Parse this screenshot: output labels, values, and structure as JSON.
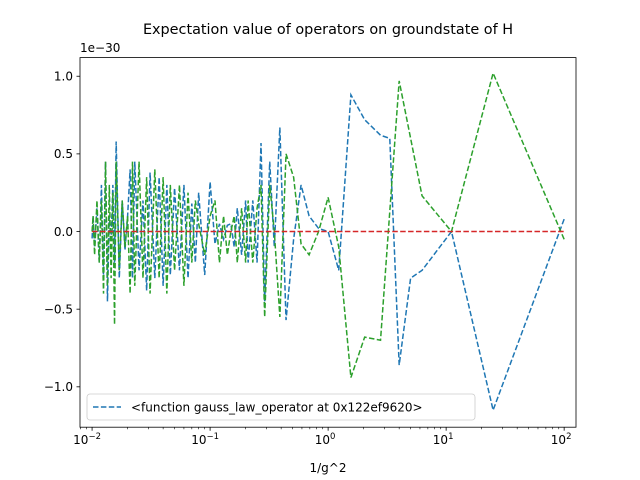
{
  "chart_data": {
    "type": "line",
    "title": "Expectation value of operators on groundstate of H",
    "xlabel": "1/g^2",
    "ylabel": "",
    "xscale": "log",
    "xlim": [
      0.0079,
      126
    ],
    "ylim": [
      -1.26,
      1.12
    ],
    "y_offset_label": "1e−30",
    "xticks": [
      {
        "value": 0.01,
        "base": "10",
        "exp": "−2"
      },
      {
        "value": 0.1,
        "base": "10",
        "exp": "−1"
      },
      {
        "value": 1,
        "base": "10",
        "exp": "0"
      },
      {
        "value": 10,
        "base": "10",
        "exp": "1"
      },
      {
        "value": 100,
        "base": "10",
        "exp": "2"
      }
    ],
    "yticks": [
      {
        "value": 1.0,
        "label": "1.0"
      },
      {
        "value": 0.5,
        "label": "0.5"
      },
      {
        "value": 0.0,
        "label": "0.0"
      },
      {
        "value": -0.5,
        "label": "−0.5"
      },
      {
        "value": -1.0,
        "label": "−1.0"
      }
    ],
    "grid": false,
    "legend_position": "lower-left",
    "series": [
      {
        "name": "<function gauss_law_operator at 0x122ef9620>",
        "color": "#1f77b4",
        "style": "dashed",
        "x": [
          100,
          25.0,
          11.1,
          6.25,
          5.0,
          4.0,
          3.33,
          2.78,
          2.04,
          1.56,
          1.23,
          1.0,
          0.83,
          0.69,
          0.59,
          0.51,
          0.44,
          0.39,
          0.35,
          0.32,
          0.29,
          0.27,
          0.25,
          0.23,
          0.21,
          0.2,
          0.185,
          0.17,
          0.16,
          0.15,
          0.14,
          0.13,
          0.12,
          0.11,
          0.1,
          0.09,
          0.08,
          0.075,
          0.07,
          0.065,
          0.06,
          0.055,
          0.05,
          0.046,
          0.043,
          0.04,
          0.037,
          0.034,
          0.031,
          0.029,
          0.027,
          0.025,
          0.023,
          0.022,
          0.021,
          0.02,
          0.019,
          0.018,
          0.017,
          0.016,
          0.0155,
          0.015,
          0.0145,
          0.014,
          0.0135,
          0.013,
          0.0125,
          0.012,
          0.0115,
          0.011,
          0.0105,
          0.0102,
          0.01
        ],
        "y": [
          0.08,
          -1.15,
          0.0,
          -0.25,
          -0.3,
          -0.86,
          0.6,
          0.62,
          0.72,
          0.88,
          -0.25,
          0.0,
          0.02,
          0.1,
          0.3,
          -0.05,
          -0.57,
          0.67,
          -0.1,
          0.45,
          -0.45,
          0.57,
          -0.2,
          0.2,
          -0.2,
          0.2,
          -0.15,
          0.15,
          -0.1,
          0.05,
          0.04,
          -0.05,
          0.05,
          -0.08,
          0.32,
          -0.28,
          0.25,
          -0.2,
          0.18,
          -0.3,
          0.3,
          -0.25,
          0.28,
          -0.28,
          0.3,
          -0.35,
          0.35,
          -0.3,
          0.38,
          -0.38,
          0.2,
          -0.25,
          0.45,
          -0.3,
          0.4,
          0.1,
          -0.12,
          0.2,
          -0.3,
          0.58,
          -0.2,
          0.3,
          -0.05,
          0.1,
          -0.45,
          0.45,
          -0.3,
          0.3,
          -0.2,
          0.15,
          -0.1,
          0.1,
          -0.05
        ]
      },
      {
        "name": "",
        "color": "#2ca02c",
        "style": "dashed",
        "x": [
          100,
          25.0,
          11.1,
          6.25,
          4.0,
          2.78,
          2.04,
          1.56,
          1.23,
          1.0,
          0.83,
          0.69,
          0.59,
          0.51,
          0.44,
          0.39,
          0.35,
          0.32,
          0.29,
          0.27,
          0.25,
          0.23,
          0.21,
          0.2,
          0.185,
          0.17,
          0.16,
          0.15,
          0.14,
          0.13,
          0.12,
          0.11,
          0.1,
          0.09,
          0.08,
          0.075,
          0.07,
          0.065,
          0.06,
          0.055,
          0.05,
          0.046,
          0.043,
          0.04,
          0.037,
          0.034,
          0.031,
          0.029,
          0.027,
          0.025,
          0.023,
          0.022,
          0.021,
          0.02,
          0.019,
          0.018,
          0.017,
          0.016,
          0.0155,
          0.015,
          0.0145,
          0.014,
          0.0135,
          0.013,
          0.0125,
          0.012,
          0.0115,
          0.011,
          0.0105,
          0.0102,
          0.01
        ],
        "y": [
          -0.05,
          1.02,
          0.0,
          0.23,
          0.97,
          -0.7,
          -0.68,
          -0.94,
          -0.1,
          0.22,
          0.0,
          -0.15,
          -0.08,
          0.35,
          0.5,
          -0.55,
          0.0,
          0.3,
          -0.55,
          0.3,
          0.15,
          -0.2,
          0.2,
          -0.2,
          0.15,
          -0.2,
          0.1,
          0.0,
          -0.15,
          0.1,
          -0.2,
          0.2,
          0.1,
          -0.15,
          0.05,
          0.2,
          -0.2,
          0.25,
          -0.35,
          0.3,
          -0.25,
          0.3,
          -0.4,
          0.35,
          -0.3,
          0.4,
          -0.4,
          0.35,
          -0.3,
          0.45,
          -0.35,
          0.45,
          -0.4,
          0.1,
          -0.1,
          0.2,
          -0.25,
          0.45,
          -0.6,
          0.25,
          -0.3,
          0.3,
          -0.35,
          0.45,
          -0.4,
          0.2,
          -0.2,
          0.2,
          -0.15,
          0.1,
          0.0
        ]
      },
      {
        "name": "",
        "color": "#d62728",
        "style": "dashed",
        "x": [
          0.01,
          100
        ],
        "y": [
          0.0,
          0.0
        ]
      }
    ]
  }
}
